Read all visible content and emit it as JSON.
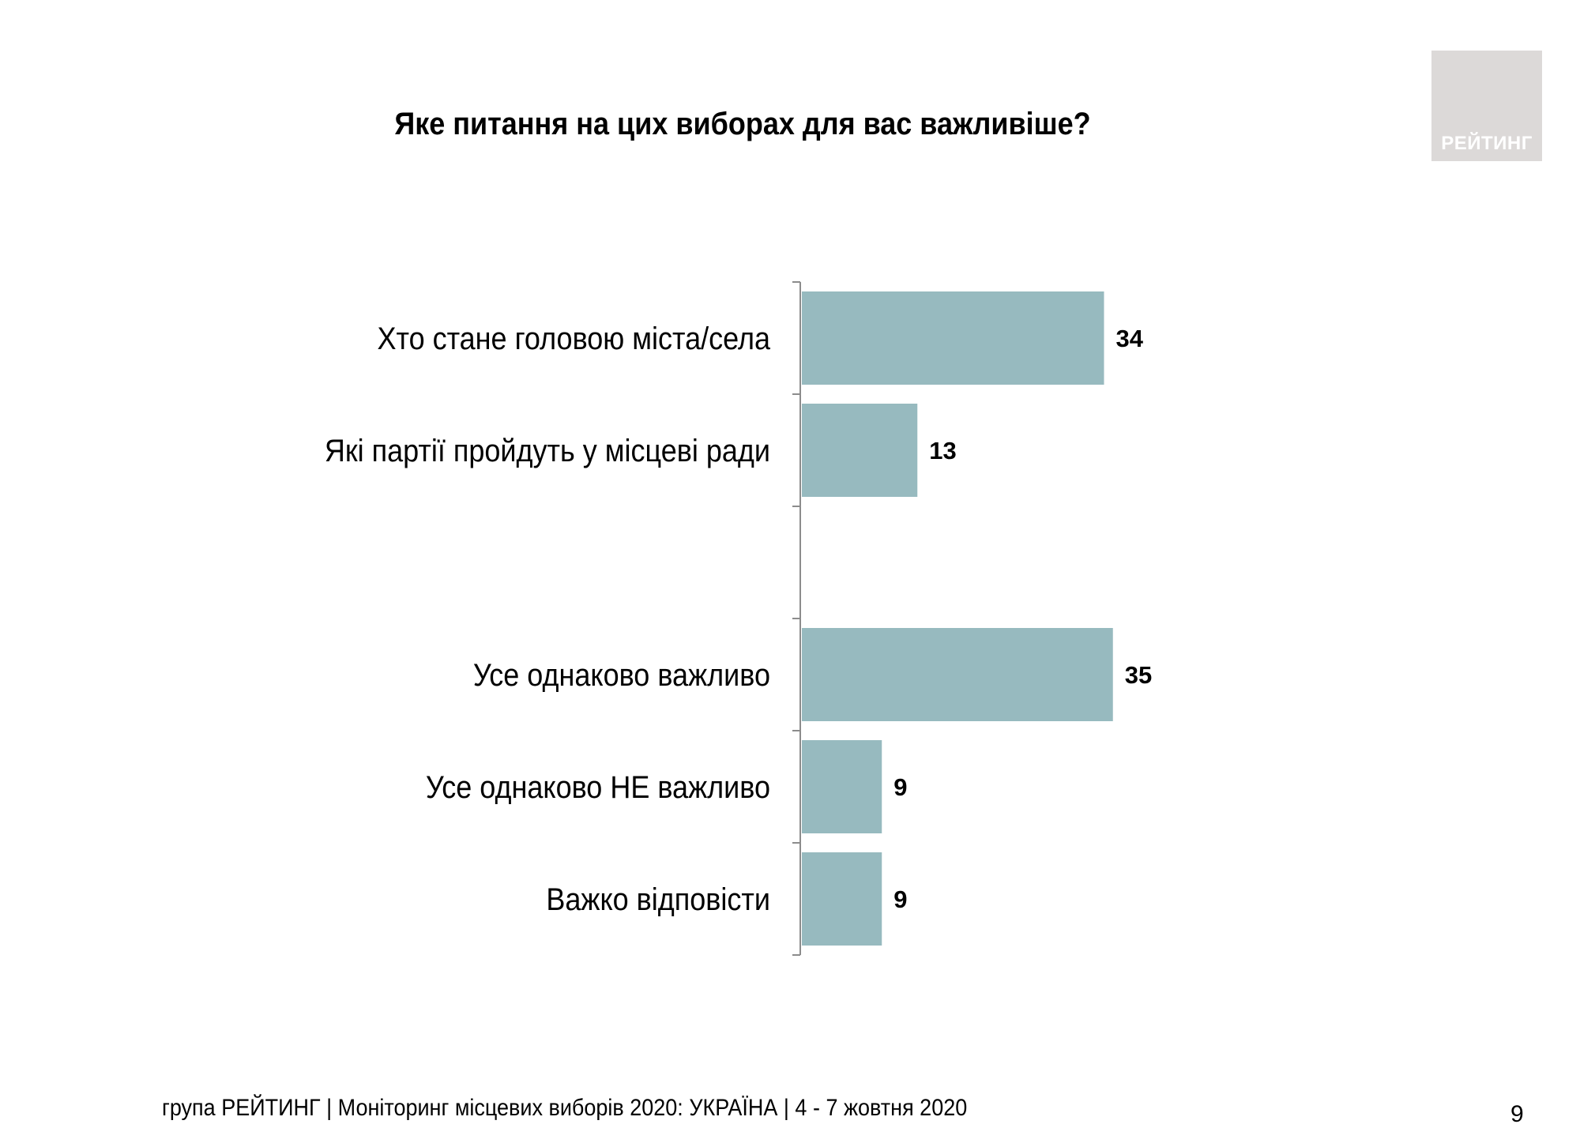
{
  "header": {
    "title": "Яке питання на цих виборах  для вас важливіше?"
  },
  "logo": {
    "text": "РЕЙТИНГ"
  },
  "chart_data": {
    "type": "bar",
    "orientation": "horizontal",
    "title": "Яке питання на цих виборах  для вас важливіше?",
    "categories": [
      "Хто стане головою міста/села",
      "Які партії пройдуть у місцеві ради",
      "",
      "Усе однаково важливо",
      "Усе однаково НЕ важливо",
      "Важко відповісти"
    ],
    "values": [
      34,
      13,
      null,
      35,
      9,
      9
    ],
    "value_labels": [
      "34",
      "13",
      "",
      "35",
      "9",
      "9"
    ],
    "bar_color": "#97babf",
    "grid": false,
    "legend": "none"
  },
  "footer": {
    "text": "група РЕЙТИНГ | Моніторинг місцевих виборів 2020: УКРАЇНА | 4 - 7 жовтня 2020",
    "page_number": "9"
  }
}
